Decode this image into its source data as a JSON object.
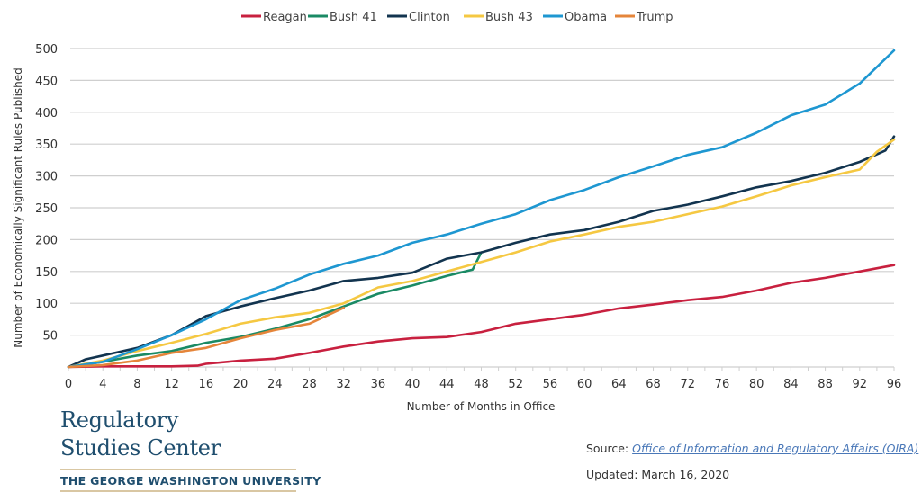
{
  "chart_data": {
    "type": "line",
    "title": "",
    "xlabel": "Number of Months in Office",
    "ylabel": "Number of Economically Significant Rules Published",
    "xlim": [
      0,
      96
    ],
    "ylim": [
      0,
      500
    ],
    "x_ticks": [
      0,
      4,
      8,
      12,
      16,
      20,
      24,
      28,
      32,
      36,
      40,
      44,
      48,
      52,
      56,
      60,
      64,
      68,
      72,
      76,
      80,
      84,
      88,
      92,
      96
    ],
    "y_ticks": [
      50,
      100,
      150,
      200,
      250,
      300,
      350,
      400,
      450,
      500
    ],
    "grid": "horizontal",
    "legend_position": "top-center",
    "series": [
      {
        "name": "Reagan",
        "color": "#c8203f",
        "points": [
          [
            0,
            0
          ],
          [
            4,
            1
          ],
          [
            8,
            1
          ],
          [
            12,
            1
          ],
          [
            15,
            2
          ],
          [
            16,
            5
          ],
          [
            20,
            10
          ],
          [
            24,
            13
          ],
          [
            28,
            22
          ],
          [
            32,
            32
          ],
          [
            36,
            40
          ],
          [
            40,
            45
          ],
          [
            44,
            47
          ],
          [
            48,
            55
          ],
          [
            52,
            68
          ],
          [
            56,
            75
          ],
          [
            60,
            82
          ],
          [
            64,
            92
          ],
          [
            68,
            98
          ],
          [
            72,
            105
          ],
          [
            76,
            110
          ],
          [
            80,
            120
          ],
          [
            84,
            132
          ],
          [
            88,
            140
          ],
          [
            92,
            150
          ],
          [
            96,
            160
          ]
        ]
      },
      {
        "name": "Bush 41",
        "color": "#1a8a64",
        "points": [
          [
            0,
            0
          ],
          [
            4,
            8
          ],
          [
            8,
            18
          ],
          [
            12,
            25
          ],
          [
            16,
            38
          ],
          [
            20,
            47
          ],
          [
            24,
            60
          ],
          [
            28,
            75
          ],
          [
            32,
            95
          ],
          [
            36,
            115
          ],
          [
            40,
            128
          ],
          [
            44,
            143
          ],
          [
            47,
            153
          ],
          [
            48,
            180
          ]
        ]
      },
      {
        "name": "Clinton",
        "color": "#12344f",
        "points": [
          [
            0,
            0
          ],
          [
            2,
            12
          ],
          [
            4,
            18
          ],
          [
            8,
            30
          ],
          [
            12,
            50
          ],
          [
            16,
            80
          ],
          [
            20,
            95
          ],
          [
            24,
            108
          ],
          [
            28,
            120
          ],
          [
            32,
            135
          ],
          [
            36,
            140
          ],
          [
            40,
            148
          ],
          [
            44,
            170
          ],
          [
            48,
            180
          ],
          [
            52,
            195
          ],
          [
            56,
            208
          ],
          [
            60,
            215
          ],
          [
            64,
            228
          ],
          [
            68,
            245
          ],
          [
            72,
            255
          ],
          [
            76,
            268
          ],
          [
            80,
            282
          ],
          [
            84,
            292
          ],
          [
            88,
            305
          ],
          [
            92,
            322
          ],
          [
            95,
            340
          ],
          [
            96,
            362
          ]
        ]
      },
      {
        "name": "Bush 43",
        "color": "#f5c842",
        "points": [
          [
            0,
            0
          ],
          [
            4,
            10
          ],
          [
            8,
            25
          ],
          [
            12,
            38
          ],
          [
            16,
            52
          ],
          [
            20,
            68
          ],
          [
            24,
            78
          ],
          [
            28,
            85
          ],
          [
            32,
            100
          ],
          [
            36,
            125
          ],
          [
            40,
            135
          ],
          [
            44,
            150
          ],
          [
            48,
            165
          ],
          [
            52,
            180
          ],
          [
            56,
            197
          ],
          [
            60,
            208
          ],
          [
            64,
            220
          ],
          [
            68,
            228
          ],
          [
            72,
            240
          ],
          [
            76,
            252
          ],
          [
            80,
            268
          ],
          [
            84,
            285
          ],
          [
            88,
            298
          ],
          [
            92,
            310
          ],
          [
            94,
            338
          ],
          [
            96,
            357
          ]
        ]
      },
      {
        "name": "Obama",
        "color": "#1e97d1",
        "points": [
          [
            0,
            0
          ],
          [
            4,
            8
          ],
          [
            8,
            28
          ],
          [
            12,
            50
          ],
          [
            16,
            75
          ],
          [
            20,
            105
          ],
          [
            24,
            123
          ],
          [
            28,
            145
          ],
          [
            32,
            162
          ],
          [
            36,
            175
          ],
          [
            40,
            195
          ],
          [
            44,
            208
          ],
          [
            48,
            225
          ],
          [
            52,
            240
          ],
          [
            56,
            262
          ],
          [
            60,
            278
          ],
          [
            64,
            298
          ],
          [
            68,
            315
          ],
          [
            72,
            333
          ],
          [
            76,
            345
          ],
          [
            80,
            368
          ],
          [
            84,
            395
          ],
          [
            88,
            412
          ],
          [
            92,
            445
          ],
          [
            96,
            497
          ]
        ]
      },
      {
        "name": "Trump",
        "color": "#e5853a",
        "points": [
          [
            0,
            0
          ],
          [
            4,
            3
          ],
          [
            8,
            10
          ],
          [
            12,
            22
          ],
          [
            16,
            30
          ],
          [
            20,
            45
          ],
          [
            24,
            58
          ],
          [
            28,
            68
          ],
          [
            32,
            93
          ]
        ]
      }
    ]
  },
  "branding": {
    "line1": "Regulatory",
    "line2": "Studies Center",
    "university": "THE GEORGE WASHINGTON UNIVERSITY"
  },
  "footer": {
    "source_label": "Source: ",
    "source_link": "Office of Information and Regulatory Affairs (OIRA)",
    "updated": "Updated: March 16, 2020"
  }
}
